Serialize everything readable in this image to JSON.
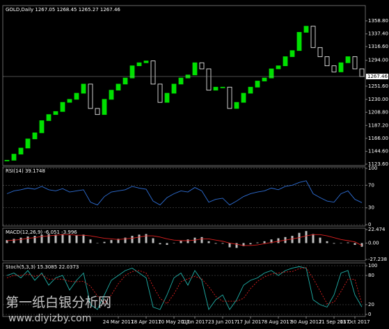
{
  "chart_data": [
    {
      "type": "candlestick",
      "title": "GOLD,Daily 1267.05 1268.45 1265.27 1267.46",
      "values": [
        1130,
        1140,
        1150,
        1165,
        1175,
        1195,
        1205,
        1210,
        1225,
        1230,
        1240,
        1255,
        1215,
        1205,
        1230,
        1245,
        1255,
        1265,
        1285,
        1290,
        1293,
        1255,
        1225,
        1240,
        1255,
        1265,
        1270,
        1290,
        1280,
        1245,
        1250,
        1250,
        1215,
        1225,
        1240,
        1250,
        1260,
        1265,
        1280,
        1285,
        1300,
        1310,
        1340,
        1350,
        1315,
        1300,
        1285,
        1275,
        1290,
        1300,
        1280,
        1267.46
      ],
      "up_color": "#00e000",
      "down_color": "#ffffff",
      "ylim": [
        1121.3,
        1383.9
      ],
      "yticks": [
        {
          "value": 1358.8,
          "label": "1358.80"
        },
        {
          "value": 1337.4,
          "label": "1337.40"
        },
        {
          "value": 1316.6,
          "label": "1316.60"
        },
        {
          "value": 1294,
          "label": "1294.00"
        },
        {
          "value": 1251.6,
          "label": "1251.60"
        },
        {
          "value": 1230,
          "label": "1230.00"
        },
        {
          "value": 1208.8,
          "label": "1208.80"
        },
        {
          "value": 1187.2,
          "label": "1187.20"
        },
        {
          "value": 1166,
          "label": "1166.00"
        },
        {
          "value": 1144.6,
          "label": "1144.60"
        },
        {
          "value": 1123.6,
          "label": "1123.60"
        }
      ],
      "last_price": 1267.46
    },
    {
      "type": "line",
      "title": "RSI(14) 39.1748",
      "grid": true,
      "series": [
        {
          "color": "#2f6fd6",
          "values": [
            55,
            60,
            62,
            65,
            63,
            68,
            62,
            60,
            64,
            58,
            60,
            62,
            40,
            35,
            50,
            58,
            60,
            62,
            68,
            65,
            63,
            42,
            35,
            48,
            55,
            60,
            58,
            66,
            60,
            40,
            45,
            47,
            35,
            42,
            50,
            55,
            58,
            60,
            65,
            62,
            68,
            70,
            75,
            78,
            55,
            48,
            42,
            40,
            55,
            60,
            45,
            39.1748
          ]
        }
      ],
      "ylim": [
        -2.4,
        102.5
      ],
      "yticks": [
        100,
        70,
        30,
        0
      ]
    },
    {
      "type": "macd",
      "title": "MACD(12,26,9) -6.051 -3.996",
      "series": [
        {
          "color": "#c0c0c0",
          "values": [
            5,
            7,
            9,
            11,
            12,
            14,
            15,
            14,
            15,
            13,
            13,
            14,
            6,
            0,
            2,
            5,
            7,
            9,
            12,
            14,
            15,
            8,
            -2,
            -3,
            0,
            4,
            6,
            9,
            10,
            3,
            -1,
            -1,
            -7,
            -8,
            -5,
            -2,
            1,
            3,
            6,
            8,
            10,
            12,
            17,
            20,
            15,
            9,
            3,
            -1,
            0,
            1,
            -3,
            -6.051
          ]
        },
        {
          "color": "#e02020",
          "values": [
            4,
            5,
            6,
            8,
            9,
            11,
            12,
            13,
            14,
            14,
            13,
            13,
            12,
            10,
            8,
            7,
            6,
            7,
            8,
            10,
            12,
            12,
            10,
            7,
            5,
            4,
            4,
            5,
            7,
            7,
            5,
            3,
            0,
            -2,
            -4,
            -4,
            -3,
            -1,
            1,
            3,
            5,
            7,
            9,
            12,
            14,
            14,
            12,
            9,
            6,
            4,
            2,
            -3.996
          ]
        }
      ],
      "ylim": [
        -29.5,
        24.8
      ],
      "yticks": [
        22.474,
        {
          "value": 0,
          "label": "0.00"
        },
        -27.238
      ]
    },
    {
      "type": "line",
      "title": "Stoch(5,3,3) 15.3085 22.0373",
      "grid": true,
      "series": [
        {
          "color": "#20b2aa",
          "values": [
            80,
            85,
            75,
            90,
            70,
            85,
            60,
            75,
            80,
            50,
            70,
            85,
            20,
            10,
            40,
            70,
            80,
            90,
            95,
            85,
            75,
            15,
            10,
            40,
            75,
            85,
            60,
            90,
            70,
            10,
            30,
            40,
            10,
            30,
            60,
            70,
            75,
            85,
            90,
            80,
            90,
            95,
            98,
            95,
            30,
            20,
            15,
            40,
            85,
            90,
            40,
            15.3085
          ]
        },
        {
          "color": "#e02020",
          "dashed": true,
          "values": [
            75,
            80,
            80,
            83,
            78,
            82,
            72,
            73,
            72,
            68,
            67,
            68,
            58,
            38,
            23,
            40,
            63,
            80,
            88,
            90,
            85,
            58,
            33,
            22,
            42,
            67,
            73,
            78,
            73,
            57,
            37,
            27,
            27,
            27,
            33,
            53,
            68,
            77,
            83,
            85,
            87,
            88,
            94,
            96,
            74,
            48,
            22,
            25,
            47,
            72,
            72,
            22.0373
          ]
        }
      ],
      "ylim": [
        -4.3,
        105.7
      ],
      "yticks": [
        100,
        80,
        20,
        0
      ],
      "xticks": [
        {
          "value": 16,
          "label": "24 Mar 2017"
        },
        {
          "value": 20,
          "label": "18 Apr 2017"
        },
        {
          "value": 24,
          "label": "10 May 2017"
        },
        {
          "value": 27,
          "label": "1 Jun 2017"
        },
        {
          "value": 31,
          "label": "23 Jun 2017"
        },
        {
          "value": 35,
          "label": "17 Jul 2017"
        },
        {
          "value": 39,
          "label": "8 Aug 2017"
        },
        {
          "value": 43,
          "label": "30 Aug 2017"
        },
        {
          "value": 47,
          "label": "21 Sep 2017"
        },
        {
          "value": 50,
          "label": "13 Oct 2017"
        }
      ]
    }
  ],
  "watermark": {
    "name": "第一纸白银分析网",
    "url": "www.diyizby.com"
  }
}
